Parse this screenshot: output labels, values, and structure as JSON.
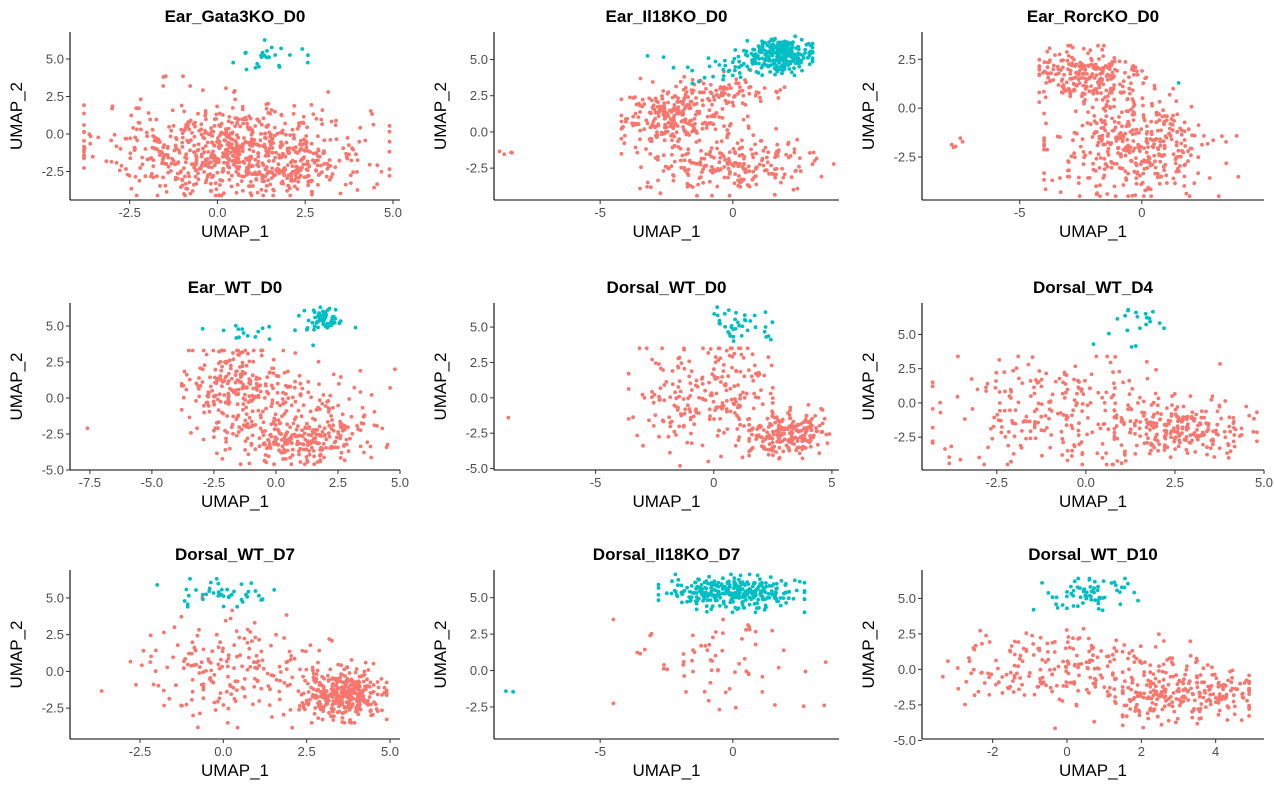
{
  "colors": {
    "cluster_0": "#F8766D",
    "cluster_1": "#00BFC4"
  },
  "chart_data": [
    {
      "type": "scatter",
      "title": "Ear_Gata3KO_D0",
      "xlabel": "UMAP_1",
      "ylabel": "UMAP_2",
      "xlim": [
        -4.2,
        5.2
      ],
      "ylim": [
        -4.4,
        6.8
      ],
      "xticks": [
        "-2.5",
        "0.0",
        "2.5",
        "5.0"
      ],
      "yticks": [
        "-2.5",
        "0.0",
        "2.5",
        "5.0"
      ],
      "series": [
        {
          "values": [
            {
              "n": 700,
              "cx": 0.5,
              "cy": -1.0,
              "sx": 1.9,
              "sy": 1.5,
              "xmin": -3.8,
              "xmax": 4.9,
              "ymin": -4.1,
              "ymax": 3.2
            },
            {
              "n": 120,
              "cx": 1.5,
              "cy": -2.3,
              "sx": 1.0,
              "sy": 0.9,
              "xmin": -3.8,
              "xmax": 4.9,
              "ymin": -4.1,
              "ymax": 3.2
            },
            {
              "n": 3,
              "cx": -1.3,
              "cy": 3.8,
              "sx": 0.3,
              "sy": 0.05
            }
          ]
        },
        {
          "values": [
            {
              "n": 24,
              "cx": 1.5,
              "cy": 5.2,
              "sx": 0.7,
              "sy": 0.45,
              "ymin": 4.3,
              "ymax": 6.5
            }
          ]
        }
      ]
    },
    {
      "type": "scatter",
      "title": "Ear_Il18KO_D0",
      "xlabel": "UMAP_1",
      "ylabel": "UMAP_2",
      "xlim": [
        -9.0,
        4.0
      ],
      "ylim": [
        -4.7,
        6.9
      ],
      "xticks": [
        "-5",
        "0"
      ],
      "yticks": [
        "-2.5",
        "0.0",
        "2.5",
        "5.0"
      ],
      "series": [
        {
          "values": [
            {
              "n": 260,
              "cx": -2.2,
              "cy": 1.0,
              "sx": 1.0,
              "sy": 1.1,
              "xmin": -4.2,
              "xmax": 0.6,
              "ymin": -2.5,
              "ymax": 3.8
            },
            {
              "n": 220,
              "cx": 0.0,
              "cy": -2.2,
              "sx": 1.6,
              "sy": 1.0,
              "xmin": -3.5,
              "xmax": 3.8,
              "ymin": -4.4,
              "ymax": 0.5
            },
            {
              "n": 60,
              "cx": 0.0,
              "cy": 2.6,
              "sx": 1.0,
              "sy": 0.5
            },
            {
              "n": 4,
              "cx": -8.1,
              "cy": -1.5,
              "sx": 0.35,
              "sy": 0.15
            }
          ]
        },
        {
          "values": [
            {
              "n": 260,
              "cx": 1.8,
              "cy": 5.3,
              "sx": 0.65,
              "sy": 0.55,
              "xmin": 0.0,
              "xmax": 3.0,
              "ymin": 3.9,
              "ymax": 6.6
            },
            {
              "n": 30,
              "cx": -0.5,
              "cy": 4.3,
              "sx": 1.0,
              "sy": 0.6
            }
          ]
        }
      ]
    },
    {
      "type": "scatter",
      "title": "Ear_RorcKO_D0",
      "xlabel": "UMAP_1",
      "ylabel": "UMAP_2",
      "xlim": [
        -9.0,
        5.0
      ],
      "ylim": [
        -4.7,
        3.9
      ],
      "xticks": [
        "-5",
        "0"
      ],
      "yticks": [
        "-2.5",
        "0.0",
        "2.5"
      ],
      "series": [
        {
          "values": [
            {
              "n": 230,
              "cx": -2.3,
              "cy": 1.6,
              "sx": 1.2,
              "sy": 0.8,
              "xmin": -4.2,
              "xmax": 1.5,
              "ymin": -0.3,
              "ymax": 3.2
            },
            {
              "n": 380,
              "cx": -0.3,
              "cy": -2.0,
              "sx": 1.6,
              "sy": 1.3,
              "xmin": -4.0,
              "xmax": 4.3,
              "ymin": -4.5,
              "ymax": 1.0
            },
            {
              "n": 5,
              "cx": -7.4,
              "cy": -1.7,
              "sx": 0.25,
              "sy": 0.3
            }
          ]
        },
        {
          "values": [
            {
              "n": 1,
              "cx": 1.5,
              "cy": 1.3,
              "sx": 0.01,
              "sy": 0.01
            }
          ]
        }
      ]
    },
    {
      "type": "scatter",
      "title": "Ear_WT_D0",
      "xlabel": "UMAP_1",
      "ylabel": "UMAP_2",
      "xlim": [
        -8.3,
        5.0
      ],
      "ylim": [
        -5.0,
        6.6
      ],
      "xticks": [
        "-7.5",
        "-5.0",
        "-2.5",
        "0.0",
        "2.5",
        "5.0"
      ],
      "yticks": [
        "-5.0",
        "-2.5",
        "0.0",
        "2.5",
        "5.0"
      ],
      "series": [
        {
          "values": [
            {
              "n": 240,
              "cx": -1.6,
              "cy": 0.8,
              "sx": 1.0,
              "sy": 1.5,
              "xmin": -3.8,
              "xmax": 1.0,
              "ymin": -3.0,
              "ymax": 3.3
            },
            {
              "n": 260,
              "cx": 0.9,
              "cy": -2.8,
              "sx": 1.4,
              "sy": 0.9,
              "xmin": -2.5,
              "xmax": 4.5,
              "ymin": -4.6,
              "ymax": -0.5
            },
            {
              "n": 60,
              "cx": 1.8,
              "cy": 0.2,
              "sx": 1.3,
              "sy": 0.9
            },
            {
              "n": 1,
              "cx": -7.6,
              "cy": -2.1,
              "sx": 0.01,
              "sy": 0.01
            }
          ]
        },
        {
          "values": [
            {
              "n": 55,
              "cx": 1.9,
              "cy": 5.5,
              "sx": 0.35,
              "sy": 0.45,
              "ymin": 4.3,
              "ymax": 6.3
            },
            {
              "n": 18,
              "cx": -0.2,
              "cy": 4.6,
              "sx": 1.2,
              "sy": 0.4
            }
          ]
        }
      ]
    },
    {
      "type": "scatter",
      "title": "Dorsal_WT_D0",
      "xlabel": "UMAP_1",
      "ylabel": "UMAP_2",
      "xlim": [
        -9.3,
        5.3
      ],
      "ylim": [
        -5.1,
        6.7
      ],
      "xticks": [
        "-5",
        "0",
        "5"
      ],
      "yticks": [
        "-5.0",
        "-2.5",
        "0.0",
        "2.5",
        "5.0"
      ],
      "series": [
        {
          "values": [
            {
              "n": 200,
              "cx": 3.0,
              "cy": -2.6,
              "sx": 0.8,
              "sy": 0.8,
              "xmin": 1.5,
              "xmax": 4.9,
              "ymin": -4.3,
              "ymax": -0.5
            },
            {
              "n": 230,
              "cx": -0.2,
              "cy": 0.2,
              "sx": 1.5,
              "sy": 1.8,
              "xmin": -3.6,
              "xmax": 2.5,
              "ymin": -4.8,
              "ymax": 3.5
            },
            {
              "n": 1,
              "cx": -8.7,
              "cy": -1.4,
              "sx": 0.01,
              "sy": 0.01
            }
          ]
        },
        {
          "values": [
            {
              "n": 38,
              "cx": 1.2,
              "cy": 5.3,
              "sx": 0.8,
              "sy": 0.6,
              "ymin": 3.7,
              "ymax": 6.4
            }
          ]
        }
      ]
    },
    {
      "type": "scatter",
      "title": "Dorsal_WT_D4",
      "xlabel": "UMAP_1",
      "ylabel": "UMAP_2",
      "xlim": [
        -4.6,
        5.0
      ],
      "ylim": [
        -4.9,
        7.3
      ],
      "xticks": [
        "-2.5",
        "0.0",
        "2.5",
        "5.0"
      ],
      "yticks": [
        "-2.5",
        "0.0",
        "2.5",
        "5.0"
      ],
      "series": [
        {
          "values": [
            {
              "n": 200,
              "cx": 2.7,
              "cy": -1.8,
              "sx": 1.0,
              "sy": 0.9,
              "xmin": 0.8,
              "xmax": 4.8,
              "ymin": -4.2,
              "ymax": 0.5
            },
            {
              "n": 260,
              "cx": -0.5,
              "cy": -0.5,
              "sx": 1.9,
              "sy": 2.0,
              "xmin": -4.3,
              "xmax": 4.5,
              "ymin": -4.5,
              "ymax": 3.4
            }
          ]
        },
        {
          "values": [
            {
              "n": 16,
              "cx": 1.7,
              "cy": 6.2,
              "sx": 0.35,
              "sy": 0.4,
              "ymin": 5.3,
              "ymax": 6.8
            },
            {
              "n": 4,
              "cx": 0.7,
              "cy": 4.8,
              "sx": 0.5,
              "sy": 0.5
            }
          ]
        }
      ]
    },
    {
      "type": "scatter",
      "title": "Dorsal_WT_D7",
      "xlabel": "UMAP_1",
      "ylabel": "UMAP_2",
      "xlim": [
        -4.6,
        5.3
      ],
      "ylim": [
        -4.6,
        6.9
      ],
      "xticks": [
        "-2.5",
        "0.0",
        "2.5",
        "5.0"
      ],
      "yticks": [
        "-2.5",
        "0.0",
        "2.5",
        "5.0"
      ],
      "series": [
        {
          "values": [
            {
              "n": 340,
              "cx": 3.6,
              "cy": -1.6,
              "sx": 0.6,
              "sy": 0.8,
              "xmin": 2.0,
              "xmax": 4.9,
              "ymin": -3.5,
              "ymax": 1.0
            },
            {
              "n": 200,
              "cx": 0.3,
              "cy": 0.0,
              "sx": 1.4,
              "sy": 1.6,
              "xmin": -4.2,
              "xmax": 4.0,
              "ymin": -4.4,
              "ymax": 5.2
            }
          ]
        },
        {
          "values": [
            {
              "n": 42,
              "cx": -0.1,
              "cy": 5.4,
              "sx": 0.7,
              "sy": 0.5,
              "ymin": 4.4,
              "ymax": 6.3
            }
          ]
        }
      ]
    },
    {
      "type": "scatter",
      "title": "Dorsal_Il18KO_D7",
      "xlabel": "UMAP_1",
      "ylabel": "UMAP_2",
      "xlim": [
        -9.0,
        4.0
      ],
      "ylim": [
        -4.7,
        6.9
      ],
      "xticks": [
        "-5",
        "0"
      ],
      "yticks": [
        "-2.5",
        "0.0",
        "2.5",
        "5.0"
      ],
      "series": [
        {
          "values": [
            {
              "n": 60,
              "cx": -0.4,
              "cy": 0.5,
              "sx": 1.8,
              "sy": 1.6,
              "xmin": -4.5,
              "xmax": 3.5,
              "ymin": -4.3,
              "ymax": 3.5
            },
            {
              "n": 6,
              "cx": 0.7,
              "cy": 3.0,
              "sx": 0.2,
              "sy": 0.2
            }
          ]
        },
        {
          "values": [
            {
              "n": 300,
              "cx": 0.1,
              "cy": 5.3,
              "sx": 1.2,
              "sy": 0.55,
              "xmin": -2.8,
              "xmax": 2.7,
              "ymin": 4.0,
              "ymax": 6.6
            },
            {
              "n": 2,
              "cx": -8.3,
              "cy": -1.5,
              "sx": 0.3,
              "sy": 0.05
            }
          ]
        }
      ]
    },
    {
      "type": "scatter",
      "title": "Dorsal_WT_D10",
      "xlabel": "UMAP_1",
      "ylabel": "UMAP_2",
      "xlim": [
        -3.9,
        5.3
      ],
      "ylim": [
        -4.9,
        7.0
      ],
      "xticks": [
        "-2",
        "0",
        "2",
        "4"
      ],
      "yticks": [
        "-5.0",
        "-2.5",
        "0.0",
        "2.5",
        "5.0"
      ],
      "series": [
        {
          "values": [
            {
              "n": 220,
              "cx": 3.3,
              "cy": -1.8,
              "sx": 1.0,
              "sy": 0.9,
              "xmin": 1.5,
              "xmax": 4.9,
              "ymin": -4.2,
              "ymax": 0.5
            },
            {
              "n": 250,
              "cx": 0.2,
              "cy": 0.0,
              "sx": 1.6,
              "sy": 1.4,
              "xmin": -3.5,
              "xmax": 3.5,
              "ymin": -4.5,
              "ymax": 3.5
            }
          ]
        },
        {
          "values": [
            {
              "n": 65,
              "cx": 0.6,
              "cy": 5.3,
              "sx": 0.75,
              "sy": 0.6,
              "ymin": 3.5,
              "ymax": 6.4
            }
          ]
        }
      ]
    }
  ]
}
